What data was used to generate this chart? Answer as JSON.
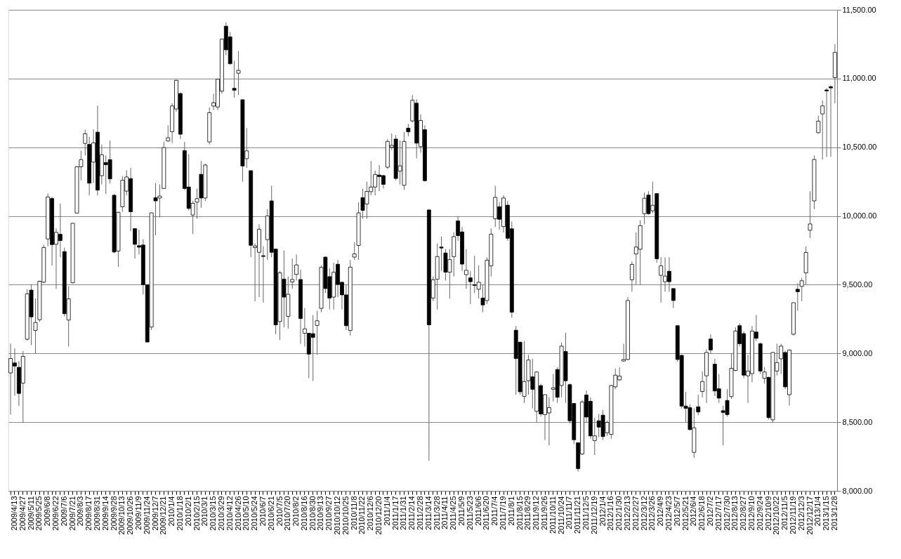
{
  "chart_data": {
    "type": "candlestick",
    "categories": [
      null,
      "2009/4/13",
      null,
      "2009/4/27",
      null,
      "2009/5/11",
      null,
      "2009/5/25",
      null,
      "2009/6/8",
      null,
      "2009/6/22",
      null,
      "2009/7/6",
      null,
      "2009/7/21",
      null,
      "2009/8/3",
      null,
      "2009/8/17",
      null,
      "2009/8/31",
      null,
      "2009/9/14",
      null,
      "2009/9/28",
      null,
      "2009/10/13",
      null,
      "2009/10/26",
      null,
      "2009/11/9",
      null,
      "2009/11/24",
      null,
      "2009/12/7",
      null,
      "2009/12/21",
      null,
      "2010/1/4",
      null,
      "2010/1/18",
      null,
      "2010/2/1",
      null,
      "2010/2/15",
      null,
      "2010/3/1",
      null,
      "2010/3/15",
      null,
      "2010/3/29",
      null,
      "2010/4/12",
      null,
      "2010/4/26",
      null,
      "2010/5/10",
      null,
      "2010/5/24",
      null,
      "2010/6/7",
      null,
      "2010/6/21",
      null,
      "2010/7/5",
      null,
      "2010/7/20",
      null,
      "2010/8/2",
      null,
      "2010/8/16",
      null,
      "2010/8/30",
      null,
      "2010/9/13",
      null,
      "2010/9/27",
      null,
      "2010/10/12",
      null,
      "2010/10/25",
      null,
      "2010/11/8",
      null,
      "2010/11/22",
      null,
      "2010/12/6",
      null,
      "2010/12/20",
      null,
      "2011/1/4",
      null,
      "2011/1/17",
      null,
      "2011/1/31",
      null,
      "2011/2/14",
      null,
      "2011/2/28",
      null,
      "2011/3/14",
      null,
      "2011/3/28",
      null,
      "2011/4/11",
      null,
      "2011/4/25",
      null,
      "2011/5/9",
      null,
      "2011/5/23",
      null,
      "2011/6/6",
      null,
      "2011/6/20",
      null,
      "2011/7/4",
      null,
      "2011/7/19",
      null,
      "2011/8/1",
      null,
      "2011/8/15",
      null,
      "2011/8/29",
      null,
      "2011/9/12",
      null,
      "2011/9/26",
      null,
      "2011/10/11",
      null,
      "2011/10/24",
      null,
      "2011/11/7",
      null,
      "2011/11/21",
      null,
      "2011/12/5",
      null,
      "2011/12/19",
      null,
      "2012/1/4",
      null,
      "2012/1/16",
      null,
      "2012/1/30",
      null,
      "2012/2/13",
      null,
      "2012/2/27",
      null,
      "2012/3/12",
      null,
      "2012/3/26",
      null,
      "2012/4/9",
      null,
      "2012/4/23",
      null,
      "2012/5/7",
      null,
      "2012/5/21",
      null,
      "2012/6/4",
      null,
      "2012/6/18",
      null,
      "2012/7/2",
      null,
      "2012/7/17",
      null,
      "2012/7/30",
      null,
      "2012/8/13",
      null,
      "2012/8/27",
      null,
      "2012/9/10",
      null,
      "2012/9/24",
      null,
      "2012/10/9",
      null,
      "2012/10/22",
      null,
      "2012/11/5",
      null,
      "2012/11/19",
      null,
      "2012/12/3",
      null,
      "2012/12/17",
      null,
      "2013/1/4",
      null,
      "2013/1/15",
      null,
      "2013/1/28"
    ],
    "ohlc": [
      [
        8858,
        9071,
        8555,
        8963
      ],
      [
        8931,
        9037,
        8693,
        8908
      ],
      [
        8899,
        8945,
        8617,
        8709
      ],
      [
        8784,
        9018,
        8495,
        8979
      ],
      [
        9103,
        9468,
        9094,
        9434
      ],
      [
        9461,
        9502,
        9060,
        9266
      ],
      [
        9167,
        9399,
        9000,
        9225
      ],
      [
        9245,
        9530,
        9230,
        9525
      ],
      [
        9518,
        9790,
        9510,
        9771
      ],
      [
        9833,
        10165,
        9780,
        10138
      ],
      [
        10127,
        10140,
        9640,
        9792
      ],
      [
        9794,
        9910,
        9470,
        9881
      ],
      [
        9867,
        10090,
        9700,
        9821
      ],
      [
        9741,
        9770,
        9270,
        9289
      ],
      [
        9243,
        9490,
        9050,
        9397
      ],
      [
        9514,
        9950,
        9510,
        9947
      ],
      [
        10021,
        10360,
        10020,
        10358
      ],
      [
        10358,
        10475,
        10260,
        10410
      ],
      [
        10528,
        10628,
        10440,
        10599
      ],
      [
        10521,
        10576,
        10150,
        10239
      ],
      [
        10392,
        10630,
        10240,
        10532
      ],
      [
        10610,
        10802,
        10150,
        10188
      ],
      [
        10293,
        10520,
        10230,
        10446
      ],
      [
        10389,
        10440,
        10160,
        10373
      ],
      [
        10410,
        10550,
        10235,
        10270
      ],
      [
        10151,
        10160,
        9730,
        9738
      ],
      [
        9745,
        10030,
        9630,
        10027
      ],
      [
        10067,
        10290,
        10030,
        10260
      ],
      [
        10181,
        10333,
        10150,
        10284
      ],
      [
        10272,
        10350,
        9890,
        10031
      ],
      [
        9908,
        9910,
        9690,
        9794
      ],
      [
        9784,
        9900,
        9720,
        9773
      ],
      [
        9789,
        9830,
        9430,
        9500
      ],
      [
        9500,
        9500,
        9080,
        9083
      ],
      [
        9192,
        10025,
        9170,
        10023
      ],
      [
        10133,
        10240,
        9860,
        10110
      ],
      [
        10131,
        10230,
        9990,
        10145
      ],
      [
        10200,
        10540,
        10200,
        10498
      ],
      [
        10546,
        10660,
        10540,
        10569
      ],
      [
        10613,
        10820,
        10530,
        10801
      ],
      [
        10779,
        10990,
        10760,
        10987
      ],
      [
        10891,
        10900,
        10560,
        10595
      ],
      [
        10476,
        10540,
        10190,
        10200
      ],
      [
        10211,
        10450,
        10040,
        10055
      ],
      [
        10007,
        10110,
        9870,
        10092
      ],
      [
        10101,
        10200,
        9980,
        10126
      ],
      [
        10303,
        10400,
        10060,
        10131
      ],
      [
        10131,
        10380,
        10110,
        10371
      ],
      [
        10539,
        10790,
        10520,
        10752
      ],
      [
        10800,
        10890,
        10770,
        10824
      ],
      [
        10793,
        11000,
        10770,
        10995
      ],
      [
        10908,
        11290,
        10890,
        11287
      ],
      [
        11381,
        11410,
        11170,
        11209
      ],
      [
        11303,
        11340,
        11100,
        11108
      ],
      [
        10929,
        11130,
        10860,
        10915
      ],
      [
        11039,
        11200,
        10880,
        11060
      ],
      [
        10846,
        10850,
        10250,
        10364
      ],
      [
        10417,
        10640,
        10350,
        10474
      ],
      [
        10330,
        10330,
        9700,
        9787
      ],
      [
        9770,
        9800,
        9380,
        9782
      ],
      [
        9736,
        9940,
        9410,
        9904
      ],
      [
        9711,
        9780,
        9370,
        9706
      ],
      [
        9828,
        10050,
        9680,
        10000
      ],
      [
        10110,
        10220,
        9700,
        9736
      ],
      [
        9759,
        9760,
        9140,
        9208
      ],
      [
        9232,
        9600,
        9100,
        9586
      ],
      [
        9541,
        9750,
        9190,
        9410
      ],
      [
        9270,
        9560,
        9180,
        9431
      ],
      [
        9520,
        9690,
        9470,
        9538
      ],
      [
        9575,
        9720,
        9530,
        9644
      ],
      [
        9538,
        9610,
        9070,
        9254
      ],
      [
        9147,
        9330,
        9050,
        9179
      ],
      [
        9147,
        9150,
        8820,
        8995
      ],
      [
        9144,
        9280,
        8800,
        9117
      ],
      [
        9204,
        9310,
        8990,
        9238
      ],
      [
        9328,
        9640,
        9300,
        9626
      ],
      [
        9701,
        9705,
        9440,
        9472
      ],
      [
        9559,
        9620,
        9320,
        9403
      ],
      [
        9410,
        9660,
        9320,
        9591
      ],
      [
        9649,
        9680,
        9410,
        9502
      ],
      [
        9518,
        9520,
        9320,
        9426
      ],
      [
        9426,
        9500,
        9170,
        9202
      ],
      [
        9167,
        9680,
        9130,
        9628
      ],
      [
        9701,
        9810,
        9680,
        9724
      ],
      [
        9786,
        10100,
        9680,
        10023
      ],
      [
        10133,
        10200,
        9980,
        10041
      ],
      [
        10087,
        10250,
        9980,
        10179
      ],
      [
        10177,
        10400,
        10150,
        10211
      ],
      [
        10211,
        10330,
        10150,
        10303
      ],
      [
        10298,
        10370,
        10180,
        10287
      ],
      [
        10294,
        10300,
        10200,
        10230
      ],
      [
        10355,
        10560,
        10340,
        10543
      ],
      [
        10500,
        10600,
        10480,
        10514
      ],
      [
        10560,
        10590,
        10260,
        10273
      ],
      [
        10326,
        10550,
        10230,
        10365
      ],
      [
        10223,
        10610,
        10190,
        10543
      ],
      [
        10639,
        10670,
        10580,
        10612
      ],
      [
        10692,
        10880,
        10680,
        10842
      ],
      [
        10821,
        10850,
        10420,
        10530
      ],
      [
        10505,
        10740,
        10460,
        10695
      ],
      [
        10628,
        10660,
        10250,
        10257
      ],
      [
        10044,
        10050,
        8220,
        9208
      ],
      [
        9403,
        9560,
        9380,
        9536
      ],
      [
        9540,
        9800,
        9320,
        9705
      ],
      [
        9774,
        9850,
        9600,
        9767
      ],
      [
        9731,
        9760,
        9530,
        9591
      ],
      [
        9591,
        9760,
        9400,
        9683
      ],
      [
        9705,
        9880,
        9560,
        9850
      ],
      [
        9964,
        10000,
        9820,
        9857
      ],
      [
        9884,
        9920,
        9600,
        9650
      ],
      [
        9573,
        9760,
        9470,
        9605
      ],
      [
        9550,
        9600,
        9360,
        9522
      ],
      [
        9500,
        9710,
        9440,
        9495
      ],
      [
        9467,
        9640,
        9400,
        9518
      ],
      [
        9403,
        9500,
        9300,
        9353
      ],
      [
        9385,
        9700,
        9360,
        9678
      ],
      [
        9637,
        9910,
        9560,
        9868
      ],
      [
        9980,
        10220,
        9920,
        10136
      ],
      [
        10067,
        10100,
        9900,
        9976
      ],
      [
        9923,
        10150,
        9880,
        10131
      ],
      [
        10079,
        10110,
        9820,
        9838
      ],
      [
        9907,
        9960,
        9260,
        9300
      ],
      [
        9169,
        9200,
        8700,
        8963
      ],
      [
        9082,
        9085,
        8700,
        8721
      ],
      [
        8688,
        9090,
        8640,
        8796
      ],
      [
        8801,
        8990,
        8700,
        8952
      ],
      [
        8830,
        8960,
        8600,
        8739
      ],
      [
        8579,
        8870,
        8500,
        8865
      ],
      [
        8766,
        8780,
        8540,
        8560
      ],
      [
        8555,
        8700,
        8370,
        8700
      ],
      [
        8567,
        8680,
        8330,
        8606
      ],
      [
        8739,
        8850,
        8650,
        8750
      ],
      [
        8883,
        8900,
        8640,
        8681
      ],
      [
        8766,
        9080,
        8680,
        9053
      ],
      [
        9014,
        9150,
        8640,
        8801
      ],
      [
        8773,
        8780,
        8490,
        8510
      ],
      [
        8636,
        8640,
        8340,
        8372
      ],
      [
        8350,
        8350,
        8140,
        8162
      ],
      [
        8269,
        8660,
        8260,
        8647
      ],
      [
        8698,
        8730,
        8500,
        8537
      ],
      [
        8652,
        8680,
        8380,
        8400
      ],
      [
        8366,
        8530,
        8260,
        8400
      ],
      [
        8510,
        8560,
        8390,
        8464
      ],
      [
        8551,
        8590,
        8370,
        8395
      ],
      [
        8423,
        8510,
        8400,
        8498
      ],
      [
        8411,
        8770,
        8380,
        8766
      ],
      [
        8757,
        8890,
        8740,
        8842
      ],
      [
        8808,
        8900,
        8800,
        8835
      ],
      [
        8945,
        9070,
        8940,
        8956
      ],
      [
        8956,
        9410,
        8950,
        9385
      ],
      [
        9536,
        9670,
        9450,
        9648
      ],
      [
        9724,
        9880,
        9500,
        9774
      ],
      [
        9758,
        9970,
        9500,
        9930
      ],
      [
        10017,
        10170,
        9940,
        10129
      ],
      [
        10152,
        10180,
        10010,
        10017
      ],
      [
        10038,
        10250,
        10020,
        10078
      ],
      [
        10163,
        10165,
        9660,
        9689
      ],
      [
        9568,
        9700,
        9370,
        9637
      ],
      [
        9522,
        9700,
        9450,
        9563
      ],
      [
        9598,
        9700,
        9450,
        9522
      ],
      [
        9472,
        9475,
        9330,
        9385
      ],
      [
        9202,
        9205,
        8940,
        8956
      ],
      [
        8986,
        8990,
        8600,
        8617
      ],
      [
        8617,
        8720,
        8500,
        8601
      ],
      [
        8606,
        8630,
        8440,
        8446
      ],
      [
        8280,
        8600,
        8240,
        8459
      ],
      [
        8612,
        8700,
        8550,
        8574
      ],
      [
        8723,
        8870,
        8680,
        8796
      ],
      [
        8837,
        9030,
        8640,
        9007
      ],
      [
        9105,
        9140,
        9000,
        9025
      ],
      [
        8922,
        8960,
        8690,
        8727
      ],
      [
        8743,
        8850,
        8640,
        8675
      ],
      [
        8583,
        8620,
        8330,
        8571
      ],
      [
        8658,
        8740,
        8540,
        8555
      ],
      [
        8686,
        9002,
        8670,
        8892
      ],
      [
        8876,
        9190,
        8870,
        9163
      ],
      [
        9202,
        9220,
        9050,
        9071
      ],
      [
        9144,
        9160,
        8820,
        8842
      ],
      [
        8837,
        8990,
        8640,
        8872
      ],
      [
        8853,
        9200,
        8790,
        9163
      ],
      [
        9156,
        9280,
        9090,
        9110
      ],
      [
        9071,
        9080,
        8850,
        8872
      ],
      [
        8819,
        8900,
        8780,
        8865
      ],
      [
        8826,
        8830,
        8520,
        8533
      ],
      [
        8517,
        9010,
        8500,
        9007
      ],
      [
        8872,
        9070,
        8840,
        8934
      ],
      [
        8961,
        9070,
        8850,
        9053
      ],
      [
        9007,
        9020,
        8740,
        8757
      ],
      [
        8700,
        9030,
        8620,
        9025
      ],
      [
        9140,
        9370,
        9130,
        9369
      ],
      [
        9467,
        9510,
        9310,
        9449
      ],
      [
        9488,
        9550,
        9380,
        9529
      ],
      [
        9586,
        9780,
        9500,
        9735
      ],
      [
        9896,
        10180,
        9840,
        9942
      ],
      [
        10110,
        10440,
        10050,
        10411
      ],
      [
        10606,
        10730,
        10600,
        10690
      ],
      [
        10743,
        10840,
        10410,
        10801
      ],
      [
        10917,
        10930,
        10430,
        10910
      ],
      [
        10940,
        10950,
        10430,
        10932
      ],
      [
        11007,
        11250,
        10820,
        11190
      ]
    ],
    "ylim": [
      8000,
      11500
    ],
    "yticks": [
      {
        "value": 8000,
        "label": "8,000.00"
      },
      {
        "value": 8500,
        "label": "8,500.00"
      },
      {
        "value": 9000,
        "label": "9,000.00"
      },
      {
        "value": 9500,
        "label": "9,500.00"
      },
      {
        "value": 10000,
        "label": "10,000.00"
      },
      {
        "value": 10500,
        "label": "10,500.00"
      },
      {
        "value": 11000,
        "label": "11,000.00"
      },
      {
        "value": 11500,
        "label": "11,500.00"
      }
    ],
    "grid": "y"
  }
}
